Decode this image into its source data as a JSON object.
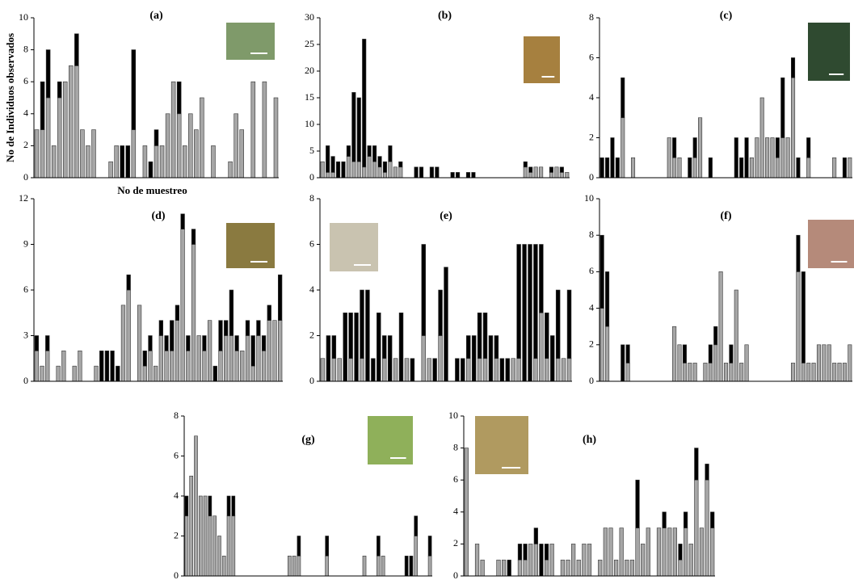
{
  "chart_data": [
    {
      "type": "bar",
      "stacked": true,
      "title": "(a)",
      "ylabel": "No de Individuos  observados",
      "xlabel": "No de muestreo",
      "ylim": [
        0,
        10
      ],
      "yticks": [
        0,
        2,
        4,
        6,
        8,
        10
      ],
      "series": [
        {
          "color": "#a6a6a6",
          "values": [
            3,
            3,
            5,
            2,
            5,
            6,
            7,
            7,
            3,
            2,
            3,
            0,
            0,
            1,
            2,
            0,
            0,
            3,
            0,
            2,
            0,
            2,
            2,
            4,
            6,
            4,
            2,
            4,
            3,
            5,
            0,
            2,
            0,
            0,
            1,
            4,
            3,
            0,
            6,
            0,
            6,
            0,
            5
          ]
        },
        {
          "color": "#000000",
          "values": [
            0,
            3,
            3,
            0,
            1,
            0,
            0,
            2,
            0,
            0,
            0,
            0,
            0,
            0,
            0,
            2,
            2,
            5,
            0,
            0,
            1,
            1,
            0,
            0,
            0,
            2,
            0,
            0,
            0,
            0,
            0,
            0,
            0,
            0,
            0,
            0,
            0,
            0,
            0,
            0,
            0,
            0,
            0
          ]
        }
      ]
    },
    {
      "type": "bar",
      "stacked": true,
      "title": "(b)",
      "ylim": [
        0,
        30
      ],
      "yticks": [
        0,
        5,
        10,
        15,
        20,
        25,
        30
      ],
      "series": [
        {
          "color": "#a6a6a6",
          "values": [
            3,
            1,
            1,
            0,
            0,
            4,
            3,
            3,
            2,
            4,
            3,
            2,
            1,
            3,
            2,
            2,
            0,
            0,
            0,
            0,
            0,
            0,
            0,
            0,
            0,
            0,
            0,
            0,
            0,
            0,
            0,
            0,
            0,
            0,
            0,
            0,
            0,
            0,
            0,
            2,
            1,
            2,
            2,
            0,
            1,
            2,
            1,
            1
          ]
        },
        {
          "color": "#000000",
          "values": [
            0,
            5,
            3,
            3,
            3,
            2,
            13,
            12,
            24,
            2,
            3,
            2,
            2,
            3,
            0,
            1,
            0,
            0,
            2,
            2,
            0,
            2,
            2,
            0,
            0,
            1,
            1,
            0,
            1,
            1,
            0,
            0,
            0,
            0,
            0,
            0,
            0,
            0,
            0,
            1,
            1,
            0,
            0,
            0,
            1,
            0,
            1,
            0
          ]
        }
      ]
    },
    {
      "type": "bar",
      "stacked": true,
      "title": "(c)",
      "ylim": [
        0,
        8
      ],
      "yticks": [
        0,
        2,
        4,
        6,
        8
      ],
      "series": [
        {
          "color": "#a6a6a6",
          "values": [
            0,
            0,
            0,
            0,
            3,
            0,
            1,
            0,
            0,
            0,
            0,
            0,
            0,
            2,
            1,
            1,
            0,
            0,
            1,
            3,
            0,
            0,
            0,
            0,
            0,
            0,
            0,
            0,
            0,
            1,
            2,
            4,
            2,
            2,
            1,
            2,
            2,
            5,
            0,
            0,
            1,
            0,
            0,
            0,
            0,
            1,
            0,
            0,
            1
          ]
        },
        {
          "color": "#000000",
          "values": [
            1,
            1,
            2,
            1,
            2,
            0,
            0,
            0,
            0,
            0,
            0,
            0,
            0,
            0,
            1,
            0,
            0,
            1,
            1,
            0,
            0,
            1,
            0,
            0,
            0,
            0,
            2,
            1,
            2,
            0,
            0,
            0,
            0,
            0,
            1,
            3,
            0,
            1,
            1,
            0,
            1,
            0,
            0,
            0,
            0,
            0,
            0,
            1,
            0
          ]
        }
      ]
    },
    {
      "type": "bar",
      "stacked": true,
      "title": "(d)",
      "ylim": [
        0,
        12
      ],
      "yticks": [
        0,
        3,
        6,
        9,
        12
      ],
      "series": [
        {
          "color": "#a6a6a6",
          "values": [
            2,
            1,
            2,
            0,
            1,
            2,
            0,
            1,
            2,
            0,
            0,
            1,
            0,
            0,
            0,
            0,
            5,
            6,
            0,
            5,
            1,
            2,
            1,
            3,
            2,
            2,
            4,
            10,
            2,
            9,
            3,
            2,
            4,
            0,
            2,
            3,
            3,
            2,
            2,
            3,
            1,
            3,
            2,
            4,
            4,
            4
          ]
        },
        {
          "color": "#000000",
          "values": [
            1,
            0,
            1,
            0,
            0,
            0,
            0,
            0,
            0,
            0,
            0,
            0,
            2,
            2,
            2,
            1,
            0,
            1,
            0,
            0,
            1,
            1,
            0,
            1,
            1,
            2,
            1,
            1,
            1,
            1,
            0,
            1,
            0,
            1,
            2,
            1,
            3,
            1,
            0,
            1,
            2,
            1,
            1,
            1,
            0,
            3
          ]
        }
      ]
    },
    {
      "type": "bar",
      "stacked": true,
      "title": "(e)",
      "ylim": [
        0,
        8
      ],
      "yticks": [
        0,
        2,
        4,
        6,
        8
      ],
      "series": [
        {
          "color": "#a6a6a6",
          "values": [
            1,
            0,
            1,
            1,
            0,
            1,
            0,
            1,
            0,
            0,
            0,
            1,
            0,
            1,
            0,
            1,
            0,
            0,
            2,
            1,
            0,
            2,
            0,
            0,
            0,
            0,
            1,
            0,
            1,
            1,
            0,
            1,
            0,
            0,
            1,
            1,
            0,
            0,
            1,
            3,
            1,
            0,
            1,
            1,
            1
          ]
        },
        {
          "color": "#000000",
          "values": [
            0,
            2,
            1,
            0,
            3,
            2,
            3,
            3,
            4,
            1,
            3,
            1,
            2,
            0,
            3,
            0,
            1,
            0,
            4,
            0,
            1,
            2,
            5,
            0,
            1,
            1,
            1,
            2,
            2,
            2,
            2,
            1,
            1,
            1,
            0,
            5,
            6,
            6,
            5,
            3,
            2,
            2,
            3,
            0,
            3
          ]
        }
      ]
    },
    {
      "type": "bar",
      "stacked": true,
      "title": "(f)",
      "ylim": [
        0,
        10
      ],
      "yticks": [
        0,
        2,
        4,
        6,
        8,
        10
      ],
      "series": [
        {
          "color": "#a6a6a6",
          "values": [
            4,
            3,
            0,
            0,
            0,
            1,
            0,
            0,
            0,
            0,
            0,
            0,
            0,
            0,
            3,
            2,
            1,
            1,
            1,
            0,
            1,
            1,
            2,
            6,
            1,
            1,
            5,
            1,
            2,
            0,
            0,
            0,
            0,
            0,
            0,
            0,
            0,
            1,
            6,
            1,
            1,
            1,
            2,
            2,
            2,
            1,
            1,
            1,
            2
          ]
        },
        {
          "color": "#000000",
          "values": [
            4,
            3,
            0,
            0,
            2,
            1,
            0,
            0,
            0,
            0,
            0,
            0,
            0,
            0,
            0,
            0,
            1,
            0,
            0,
            0,
            0,
            1,
            1,
            0,
            0,
            1,
            0,
            0,
            0,
            0,
            0,
            0,
            0,
            0,
            0,
            0,
            0,
            0,
            2,
            5,
            0,
            0,
            0,
            0,
            0,
            0,
            0,
            0,
            0
          ]
        }
      ]
    },
    {
      "type": "bar",
      "stacked": true,
      "title": "(g)",
      "ylim": [
        0,
        8
      ],
      "yticks": [
        0,
        2,
        4,
        6,
        8
      ],
      "series": [
        {
          "color": "#a6a6a6",
          "values": [
            3,
            5,
            7,
            4,
            4,
            3,
            3,
            2,
            1,
            3,
            3,
            0,
            0,
            0,
            0,
            0,
            0,
            0,
            0,
            0,
            0,
            0,
            1,
            1,
            1,
            0,
            0,
            0,
            0,
            0,
            1,
            0,
            0,
            0,
            0,
            0,
            0,
            0,
            1,
            0,
            0,
            1,
            1,
            0,
            0,
            0,
            0,
            0,
            0,
            2,
            0,
            0,
            1
          ]
        },
        {
          "color": "#000000",
          "values": [
            1,
            0,
            0,
            0,
            0,
            1,
            0,
            0,
            0,
            1,
            1,
            0,
            0,
            0,
            0,
            0,
            0,
            0,
            0,
            0,
            0,
            0,
            0,
            0,
            1,
            0,
            0,
            0,
            0,
            0,
            1,
            0,
            0,
            0,
            0,
            0,
            0,
            0,
            0,
            0,
            0,
            1,
            0,
            0,
            0,
            0,
            0,
            1,
            1,
            1,
            0,
            0,
            1
          ]
        }
      ]
    },
    {
      "type": "bar",
      "stacked": true,
      "title": "(h)",
      "ylim": [
        0,
        10
      ],
      "yticks": [
        0,
        2,
        4,
        6,
        8,
        10
      ],
      "series": [
        {
          "color": "#a6a6a6",
          "values": [
            8,
            0,
            2,
            1,
            0,
            0,
            1,
            1,
            0,
            0,
            1,
            1,
            2,
            2,
            0,
            1,
            2,
            0,
            1,
            1,
            2,
            1,
            2,
            2,
            0,
            1,
            3,
            3,
            1,
            3,
            1,
            1,
            3,
            2,
            3,
            0,
            3,
            3,
            3,
            3,
            1,
            3,
            2,
            6,
            3,
            6,
            3
          ]
        },
        {
          "color": "#000000",
          "values": [
            0,
            0,
            0,
            0,
            0,
            0,
            0,
            0,
            1,
            0,
            1,
            1,
            0,
            1,
            2,
            1,
            0,
            0,
            0,
            0,
            0,
            0,
            0,
            0,
            0,
            0,
            0,
            0,
            0,
            0,
            0,
            0,
            3,
            0,
            0,
            0,
            0,
            1,
            0,
            0,
            1,
            1,
            0,
            2,
            0,
            1,
            1
          ]
        }
      ]
    }
  ]
}
